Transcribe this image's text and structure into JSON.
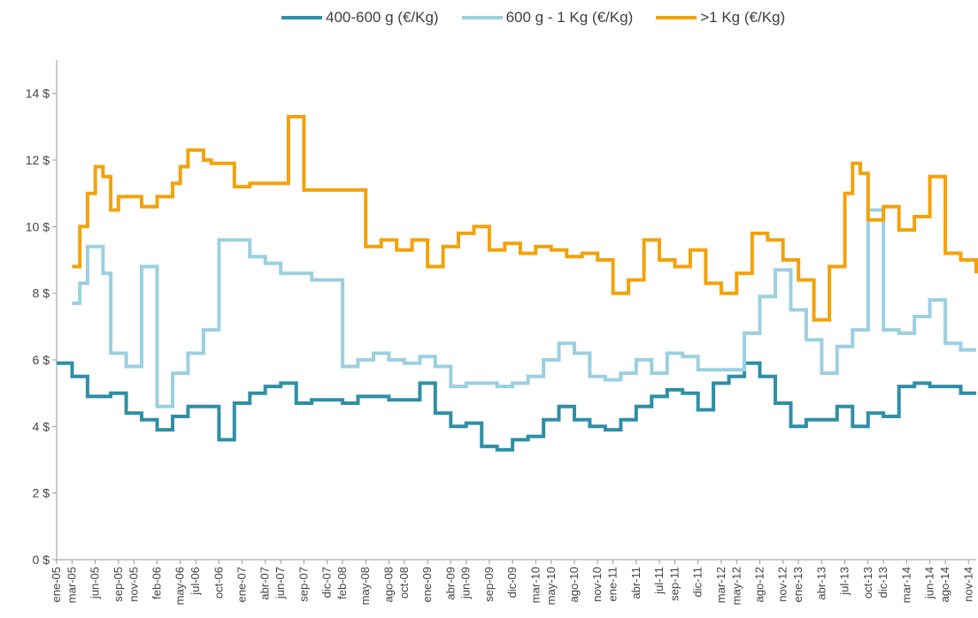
{
  "chart_data": {
    "type": "line",
    "title": "",
    "xlabel": "",
    "ylabel": "",
    "ylim": [
      0,
      15
    ],
    "yticks": [
      0,
      2,
      4,
      6,
      8,
      10,
      12,
      14
    ],
    "ytick_labels": [
      "0 $",
      "2 $",
      "4 $",
      "6 $",
      "8 $",
      "10 $",
      "12 $",
      "14 $"
    ],
    "grid": false,
    "legend_position": "top",
    "x_start": "2005-01",
    "x_end": "2014-12",
    "xtick_labels": [
      "ene-05",
      "mar-05",
      "jun-05",
      "sep-05",
      "nov-05",
      "feb-06",
      "may-06",
      "jul-06",
      "oct-06",
      "ene-07",
      "abr-07",
      "jun-07",
      "sep-07",
      "dic-07",
      "feb-08",
      "may-08",
      "ago-08",
      "oct-08",
      "ene-09",
      "abr-09",
      "jun-09",
      "sep-09",
      "dic-09",
      "mar-10",
      "may-10",
      "ago-10",
      "nov-10",
      "ene-11",
      "abr-11",
      "jul-11",
      "sep-11",
      "dic-11",
      "mar-12",
      "may-12",
      "ago-12",
      "nov-12",
      "ene-13",
      "abr-13",
      "jul-13",
      "oct-13",
      "dic-13",
      "mar-14",
      "jun-14",
      "ago-14",
      "nov-14"
    ],
    "xtick_positions": [
      "2005-01",
      "2005-03",
      "2005-06",
      "2005-09",
      "2005-11",
      "2006-02",
      "2006-05",
      "2006-07",
      "2006-10",
      "2007-01",
      "2007-04",
      "2007-06",
      "2007-09",
      "2007-12",
      "2008-02",
      "2008-05",
      "2008-08",
      "2008-10",
      "2009-01",
      "2009-04",
      "2009-06",
      "2009-09",
      "2009-12",
      "2010-03",
      "2010-05",
      "2010-08",
      "2010-11",
      "2011-01",
      "2011-04",
      "2011-07",
      "2011-09",
      "2011-12",
      "2012-03",
      "2012-05",
      "2012-08",
      "2012-11",
      "2013-01",
      "2013-04",
      "2013-07",
      "2013-10",
      "2013-12",
      "2014-03",
      "2014-06",
      "2014-08",
      "2014-11"
    ],
    "series": [
      {
        "name": "400-600 g (€/Kg)",
        "color": "#2e8fa6",
        "x": [
          "2005-01",
          "2005-02",
          "2005-03",
          "2005-05",
          "2005-08",
          "2005-10",
          "2005-12",
          "2006-02",
          "2006-04",
          "2006-06",
          "2006-08",
          "2006-10",
          "2006-12",
          "2007-02",
          "2007-04",
          "2007-06",
          "2007-08",
          "2007-10",
          "2007-12",
          "2008-02",
          "2008-04",
          "2008-06",
          "2008-08",
          "2008-10",
          "2008-12",
          "2009-02",
          "2009-04",
          "2009-06",
          "2009-08",
          "2009-10",
          "2009-12",
          "2010-02",
          "2010-04",
          "2010-06",
          "2010-08",
          "2010-10",
          "2010-12",
          "2011-02",
          "2011-04",
          "2011-06",
          "2011-08",
          "2011-10",
          "2011-12",
          "2012-02",
          "2012-04",
          "2012-06",
          "2012-08",
          "2012-10",
          "2012-12",
          "2013-02",
          "2013-04",
          "2013-06",
          "2013-08",
          "2013-10",
          "2013-12",
          "2014-02",
          "2014-04",
          "2014-06",
          "2014-08",
          "2014-10",
          "2014-12"
        ],
        "y": [
          5.9,
          5.9,
          5.5,
          4.9,
          5.0,
          4.4,
          4.2,
          3.9,
          4.3,
          4.6,
          4.6,
          3.6,
          4.7,
          5.0,
          5.2,
          5.3,
          4.7,
          4.8,
          4.8,
          4.7,
          4.9,
          4.9,
          4.8,
          4.8,
          5.3,
          4.4,
          4.0,
          4.1,
          3.4,
          3.3,
          3.6,
          3.7,
          4.2,
          4.6,
          4.2,
          4.0,
          3.9,
          4.2,
          4.6,
          4.9,
          5.1,
          5.0,
          4.5,
          5.3,
          5.5,
          5.9,
          5.5,
          4.7,
          4.0,
          4.2,
          4.2,
          4.6,
          4.0,
          4.4,
          4.3,
          5.2,
          5.3,
          5.2,
          5.2,
          5.0,
          5.0
        ]
      },
      {
        "name": "600 g - 1 Kg (€/Kg)",
        "color": "#9bd0e0",
        "x": [
          "2005-03",
          "2005-04",
          "2005-05",
          "2005-07",
          "2005-08",
          "2005-10",
          "2005-12",
          "2006-02",
          "2006-04",
          "2006-06",
          "2006-08",
          "2006-10",
          "2006-12",
          "2007-02",
          "2007-04",
          "2007-06",
          "2007-08",
          "2007-10",
          "2007-12",
          "2008-02",
          "2008-04",
          "2008-06",
          "2008-08",
          "2008-10",
          "2008-12",
          "2009-02",
          "2009-04",
          "2009-06",
          "2009-08",
          "2009-10",
          "2009-12",
          "2010-02",
          "2010-04",
          "2010-06",
          "2010-08",
          "2010-10",
          "2010-12",
          "2011-02",
          "2011-04",
          "2011-06",
          "2011-08",
          "2011-10",
          "2011-12",
          "2012-02",
          "2012-04",
          "2012-06",
          "2012-08",
          "2012-10",
          "2012-12",
          "2013-02",
          "2013-04",
          "2013-06",
          "2013-08",
          "2013-10",
          "2013-12",
          "2014-02",
          "2014-04",
          "2014-06",
          "2014-08",
          "2014-10",
          "2014-12"
        ],
        "y": [
          7.7,
          8.3,
          9.4,
          8.6,
          6.2,
          5.8,
          8.8,
          4.6,
          5.6,
          6.2,
          6.9,
          9.6,
          9.6,
          9.1,
          8.9,
          8.6,
          8.6,
          8.4,
          8.4,
          5.8,
          6.0,
          6.2,
          6.0,
          5.9,
          6.1,
          5.8,
          5.2,
          5.3,
          5.3,
          5.2,
          5.3,
          5.5,
          6.0,
          6.5,
          6.2,
          5.5,
          5.4,
          5.6,
          6.0,
          5.6,
          6.2,
          6.1,
          5.7,
          5.7,
          5.7,
          6.8,
          7.9,
          8.7,
          7.5,
          6.6,
          5.6,
          6.4,
          6.9,
          10.5,
          6.9,
          6.8,
          7.3,
          7.8,
          6.5,
          6.3,
          6.3
        ]
      },
      {
        "name": ">1 Kg (€/Kg)",
        "color": "#f2a20c",
        "x": [
          "2005-03",
          "2005-04",
          "2005-05",
          "2005-06",
          "2005-07",
          "2005-08",
          "2005-09",
          "2005-10",
          "2005-12",
          "2006-02",
          "2006-04",
          "2006-05",
          "2006-06",
          "2006-08",
          "2006-09",
          "2006-10",
          "2006-12",
          "2007-02",
          "2007-04",
          "2007-06",
          "2007-07",
          "2007-09",
          "2007-11",
          "2008-01",
          "2008-03",
          "2008-05",
          "2008-07",
          "2008-09",
          "2008-11",
          "2009-01",
          "2009-03",
          "2009-05",
          "2009-07",
          "2009-09",
          "2009-11",
          "2010-01",
          "2010-03",
          "2010-05",
          "2010-07",
          "2010-09",
          "2010-11",
          "2011-01",
          "2011-03",
          "2011-05",
          "2011-07",
          "2011-09",
          "2011-11",
          "2012-01",
          "2012-03",
          "2012-05",
          "2012-07",
          "2012-09",
          "2012-11",
          "2013-01",
          "2013-03",
          "2013-05",
          "2013-07",
          "2013-08",
          "2013-09",
          "2013-10",
          "2013-12",
          "2014-02",
          "2014-04",
          "2014-06",
          "2014-08",
          "2014-10",
          "2014-12"
        ],
        "y": [
          8.8,
          10.0,
          11.0,
          11.8,
          11.5,
          10.5,
          10.9,
          10.9,
          10.6,
          10.9,
          11.3,
          11.8,
          12.3,
          12.0,
          11.9,
          11.9,
          11.2,
          11.3,
          11.3,
          11.3,
          13.3,
          11.1,
          11.1,
          11.1,
          11.1,
          9.4,
          9.6,
          9.3,
          9.6,
          8.8,
          9.4,
          9.8,
          10.0,
          9.3,
          9.5,
          9.2,
          9.4,
          9.3,
          9.1,
          9.2,
          9.0,
          8.0,
          8.4,
          9.6,
          9.0,
          8.8,
          9.3,
          8.3,
          8.0,
          8.6,
          9.8,
          9.6,
          9.0,
          8.4,
          7.2,
          8.8,
          11.0,
          11.9,
          11.6,
          10.2,
          10.6,
          9.9,
          10.3,
          11.5,
          9.2,
          9.0,
          8.6
        ]
      }
    ]
  }
}
